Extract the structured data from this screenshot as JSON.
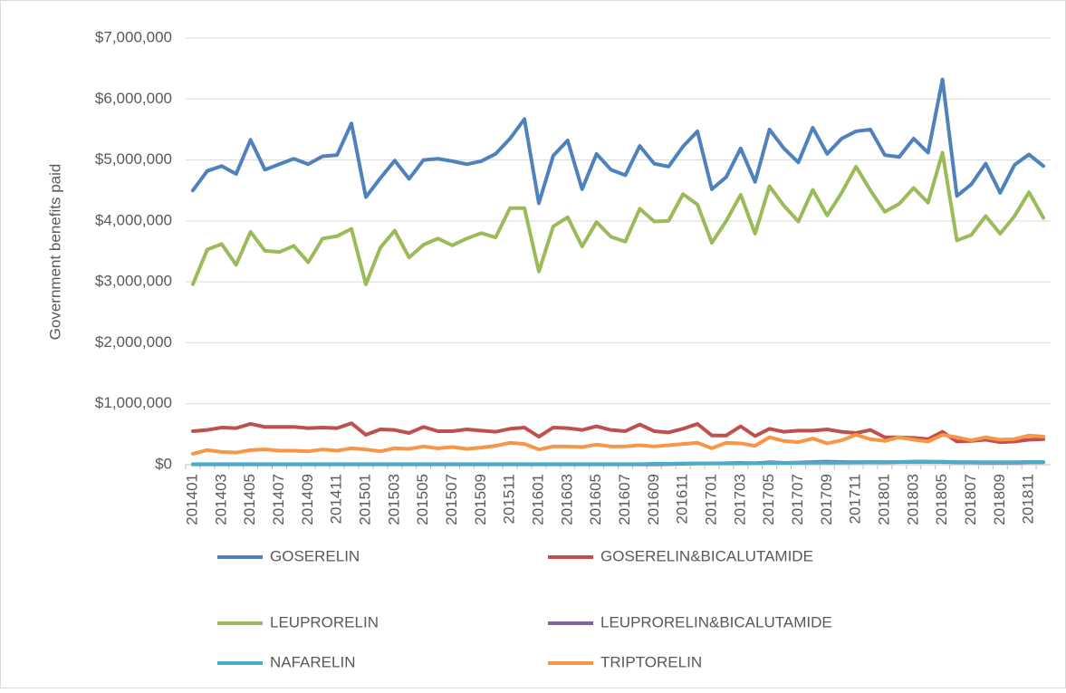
{
  "chart_data": {
    "type": "line",
    "y_label": "Government benefits paid",
    "categories": [
      "201401",
      null,
      "201403",
      null,
      "201405",
      null,
      "201407",
      null,
      "201409",
      null,
      "201411",
      null,
      "201501",
      null,
      "201503",
      null,
      "201505",
      null,
      "201507",
      null,
      "201509",
      null,
      "201511",
      null,
      "201601",
      null,
      "201603",
      null,
      "201605",
      null,
      "201607",
      null,
      "201609",
      null,
      "201611",
      null,
      "201701",
      null,
      "201703",
      null,
      "201705",
      null,
      "201707",
      null,
      "201709",
      null,
      "201711",
      null,
      "201801",
      null,
      "201803",
      null,
      "201805",
      null,
      "201807",
      null,
      "201809",
      null,
      "201811",
      null
    ],
    "series": [
      {
        "name": "GOSERELIN",
        "color": "#4f81bd",
        "values": [
          4500000,
          4820000,
          4900000,
          4770000,
          5330000,
          4840000,
          4930000,
          5020000,
          4930000,
          5060000,
          5080000,
          5600000,
          4390000,
          4700000,
          4990000,
          4690000,
          5000000,
          5020000,
          4980000,
          4930000,
          4980000,
          5100000,
          5350000,
          5670000,
          4290000,
          5070000,
          5320000,
          4520000,
          5100000,
          4840000,
          4750000,
          5230000,
          4940000,
          4890000,
          5220000,
          5470000,
          4520000,
          4720000,
          5190000,
          4640000,
          5500000,
          5190000,
          4960000,
          5530000,
          5100000,
          5350000,
          5470000,
          5500000,
          5080000,
          5050000,
          5350000,
          5120000,
          6320000,
          4410000,
          4600000,
          4940000,
          4460000,
          4920000,
          5090000,
          4900000
        ]
      },
      {
        "name": "GOSERELIN&BICALUTAMIDE",
        "color": "#c0504d",
        "values": [
          550000,
          570000,
          610000,
          600000,
          670000,
          620000,
          620000,
          620000,
          600000,
          610000,
          600000,
          680000,
          490000,
          580000,
          570000,
          520000,
          620000,
          550000,
          550000,
          580000,
          560000,
          540000,
          590000,
          610000,
          460000,
          610000,
          600000,
          570000,
          630000,
          570000,
          550000,
          660000,
          550000,
          530000,
          590000,
          670000,
          480000,
          480000,
          630000,
          470000,
          590000,
          540000,
          560000,
          560000,
          580000,
          540000,
          520000,
          570000,
          450000,
          450000,
          440000,
          420000,
          540000,
          380000,
          390000,
          410000,
          370000,
          380000,
          410000,
          420000
        ]
      },
      {
        "name": "LEUPRORELIN",
        "color": "#9bbb59",
        "values": [
          2960000,
          3530000,
          3620000,
          3280000,
          3820000,
          3510000,
          3490000,
          3590000,
          3320000,
          3710000,
          3750000,
          3870000,
          2960000,
          3560000,
          3840000,
          3400000,
          3610000,
          3710000,
          3600000,
          3710000,
          3800000,
          3730000,
          4210000,
          4210000,
          3170000,
          3910000,
          4060000,
          3580000,
          3980000,
          3740000,
          3660000,
          4200000,
          3990000,
          4000000,
          4440000,
          4270000,
          3640000,
          4000000,
          4430000,
          3790000,
          4570000,
          4250000,
          3990000,
          4510000,
          4090000,
          4460000,
          4890000,
          4500000,
          4150000,
          4280000,
          4540000,
          4300000,
          5120000,
          3680000,
          3770000,
          4080000,
          3790000,
          4080000,
          4470000,
          4050000
        ]
      },
      {
        "name": "LEUPRORELIN&BICALUTAMIDE",
        "color": "#8064a2",
        "values": [
          5000,
          5000,
          5000,
          5000,
          5000,
          5000,
          5000,
          5000,
          5000,
          5000,
          5000,
          5000,
          5000,
          5000,
          5000,
          5000,
          5000,
          5000,
          5000,
          5000,
          5000,
          5000,
          5000,
          5000,
          5000,
          5000,
          5000,
          5000,
          5000,
          5000,
          5000,
          5000,
          5000,
          10000,
          15000,
          20000,
          20000,
          25000,
          30000,
          25000,
          40000,
          30000,
          35000,
          45000,
          50000,
          45000,
          40000,
          45000,
          40000,
          45000,
          50000,
          50000,
          45000,
          40000,
          40000,
          35000,
          35000,
          35000,
          40000,
          40000
        ]
      },
      {
        "name": "NAFARELIN",
        "color": "#4bacc6",
        "values": [
          10000,
          10000,
          10000,
          10000,
          10000,
          10000,
          10000,
          10000,
          10000,
          10000,
          10000,
          10000,
          10000,
          10000,
          10000,
          10000,
          10000,
          10000,
          10000,
          10000,
          10000,
          10000,
          10000,
          10000,
          10000,
          10000,
          10000,
          10000,
          10000,
          10000,
          10000,
          10000,
          15000,
          15000,
          20000,
          20000,
          20000,
          20000,
          20000,
          25000,
          30000,
          30000,
          30000,
          35000,
          35000,
          35000,
          40000,
          40000,
          40000,
          45000,
          45000,
          45000,
          50000,
          40000,
          40000,
          40000,
          40000,
          40000,
          45000,
          45000
        ]
      },
      {
        "name": "TRIPTORELIN",
        "color": "#f79646",
        "values": [
          180000,
          240000,
          210000,
          200000,
          240000,
          250000,
          230000,
          230000,
          220000,
          250000,
          230000,
          270000,
          250000,
          220000,
          270000,
          260000,
          300000,
          270000,
          290000,
          260000,
          280000,
          310000,
          360000,
          340000,
          250000,
          300000,
          300000,
          290000,
          330000,
          300000,
          300000,
          320000,
          300000,
          320000,
          340000,
          360000,
          270000,
          360000,
          350000,
          310000,
          450000,
          390000,
          370000,
          430000,
          350000,
          400000,
          490000,
          420000,
          390000,
          450000,
          410000,
          380000,
          490000,
          450000,
          400000,
          450000,
          410000,
          420000,
          480000,
          460000
        ]
      }
    ],
    "ylim": [
      0,
      7000000
    ],
    "yticks": [
      {
        "value": 0,
        "label": "$0"
      },
      {
        "value": 1000000,
        "label": "$1,000,000"
      },
      {
        "value": 2000000,
        "label": "$2,000,000"
      },
      {
        "value": 3000000,
        "label": "$3,000,000"
      },
      {
        "value": 4000000,
        "label": "$4,000,000"
      },
      {
        "value": 5000000,
        "label": "$5,000,000"
      },
      {
        "value": 6000000,
        "label": "$6,000,000"
      },
      {
        "value": 7000000,
        "label": "$7,000,000"
      }
    ],
    "grid": true,
    "legend": "bottom"
  }
}
